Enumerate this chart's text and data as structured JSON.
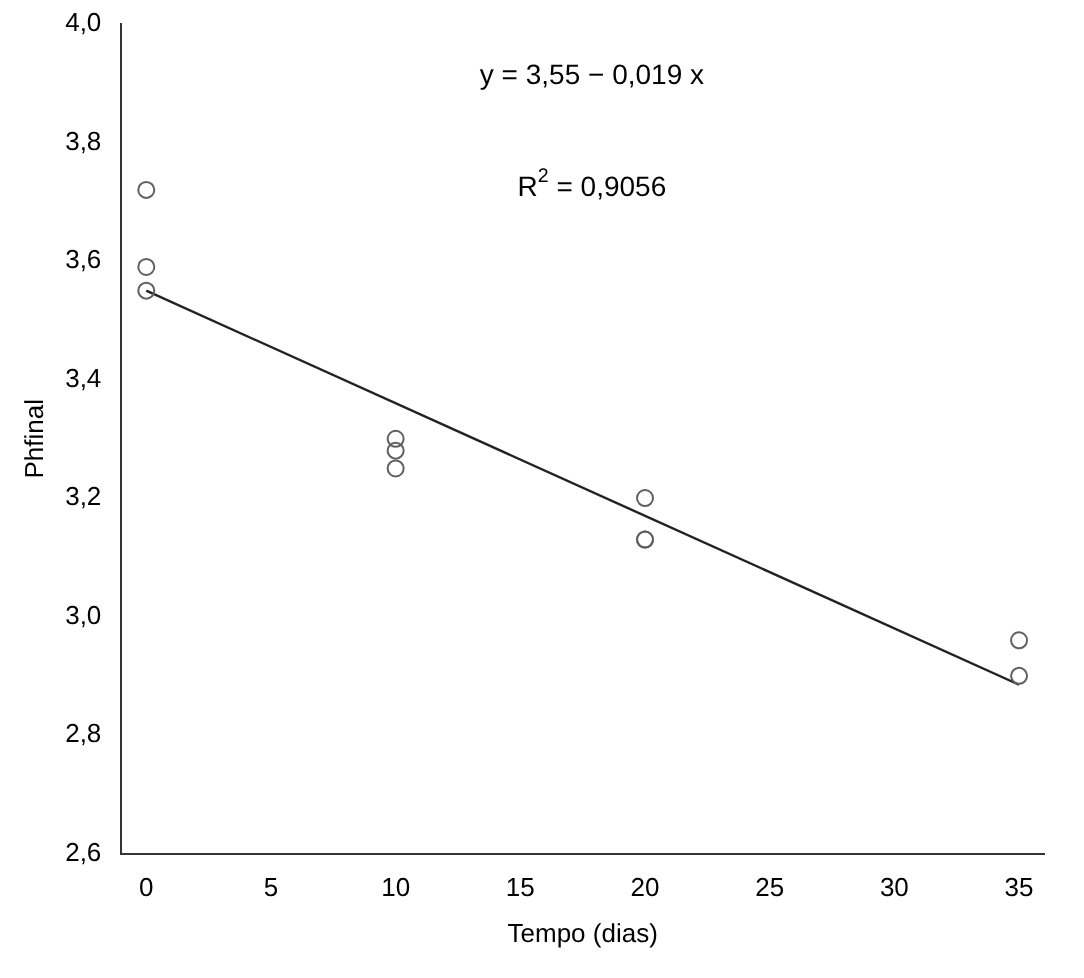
{
  "chart_data": {
    "type": "scatter",
    "xlabel": "Tempo (dias)",
    "ylabel": "Phfinal",
    "annotations": [
      "y = 3,55 − 0,019 x",
      "R$^{2}$ = 0,9056"
    ],
    "series": [
      {
        "color": "#606060",
        "x": [
          0,
          0,
          0,
          10,
          10,
          10,
          20,
          20,
          20,
          35,
          35
        ],
        "values": [
          3.72,
          3.59,
          3.55,
          3.3,
          3.28,
          3.25,
          3.2,
          3.13,
          3.13,
          2.96,
          2.9
        ]
      },
      {
        "type": "line",
        "marker": "none",
        "color": "#222222",
        "x": [
          0,
          35
        ],
        "values": [
          3.55,
          2.885
        ]
      }
    ],
    "marker": "circle",
    "line_style": "solid",
    "grid": false,
    "legend": false,
    "xlim": [
      -1,
      36
    ],
    "ylim": [
      2.6,
      4.0
    ],
    "xticks": [
      0,
      5,
      10,
      15,
      20,
      25,
      30,
      35
    ],
    "yticks": [
      {
        "value": 2.6,
        "label": "2,6"
      },
      {
        "value": 2.8,
        "label": "2,8"
      },
      {
        "value": 3.0,
        "label": "3,0"
      },
      {
        "value": 3.2,
        "label": "3,2"
      },
      {
        "value": 3.4,
        "label": "3,4"
      },
      {
        "value": 3.6,
        "label": "3,6"
      },
      {
        "value": 3.8,
        "label": "3,8"
      },
      {
        "value": 4.0,
        "label": "4,0"
      }
    ]
  }
}
